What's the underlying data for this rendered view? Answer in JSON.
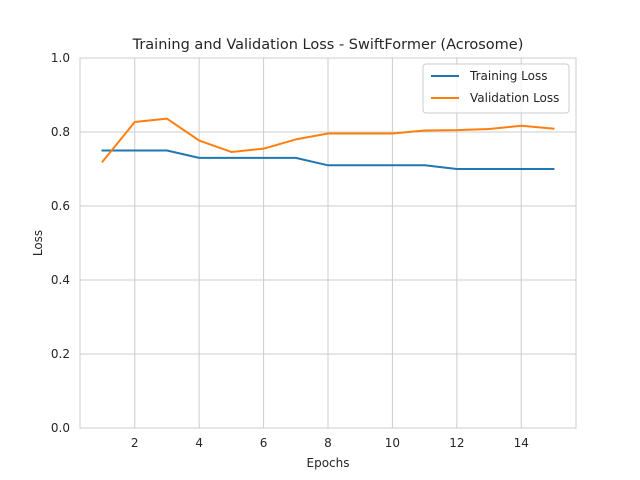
{
  "chart_data": {
    "type": "line",
    "title": "Training and Validation Loss - SwiftFormer (Acrosome)",
    "xlabel": "Epochs",
    "ylabel": "Loss",
    "xlim": [
      0.3,
      15.7
    ],
    "ylim": [
      0.0,
      1.0
    ],
    "xticks": [
      2,
      4,
      6,
      8,
      10,
      12,
      14
    ],
    "yticks": [
      0.0,
      0.2,
      0.4,
      0.6,
      0.8,
      1.0
    ],
    "xtick_labels": [
      "2",
      "4",
      "6",
      "8",
      "10",
      "12",
      "14"
    ],
    "ytick_labels": [
      "0.0",
      "0.2",
      "0.4",
      "0.6",
      "0.8",
      "1.0"
    ],
    "grid": true,
    "legend_position": "top-right",
    "x": [
      1,
      2,
      3,
      4,
      5,
      6,
      7,
      8,
      9,
      10,
      11,
      12,
      13,
      14,
      15
    ],
    "series": [
      {
        "name": "Training Loss",
        "color": "#1f77b4",
        "values": [
          0.75,
          0.75,
          0.75,
          0.73,
          0.73,
          0.73,
          0.73,
          0.71,
          0.71,
          0.71,
          0.71,
          0.7,
          0.7,
          0.7,
          0.7
        ]
      },
      {
        "name": "Validation Loss",
        "color": "#ff7f0e",
        "values": [
          0.72,
          0.827,
          0.836,
          0.777,
          0.746,
          0.755,
          0.78,
          0.796,
          0.796,
          0.796,
          0.804,
          0.805,
          0.808,
          0.817,
          0.809
        ]
      }
    ]
  }
}
